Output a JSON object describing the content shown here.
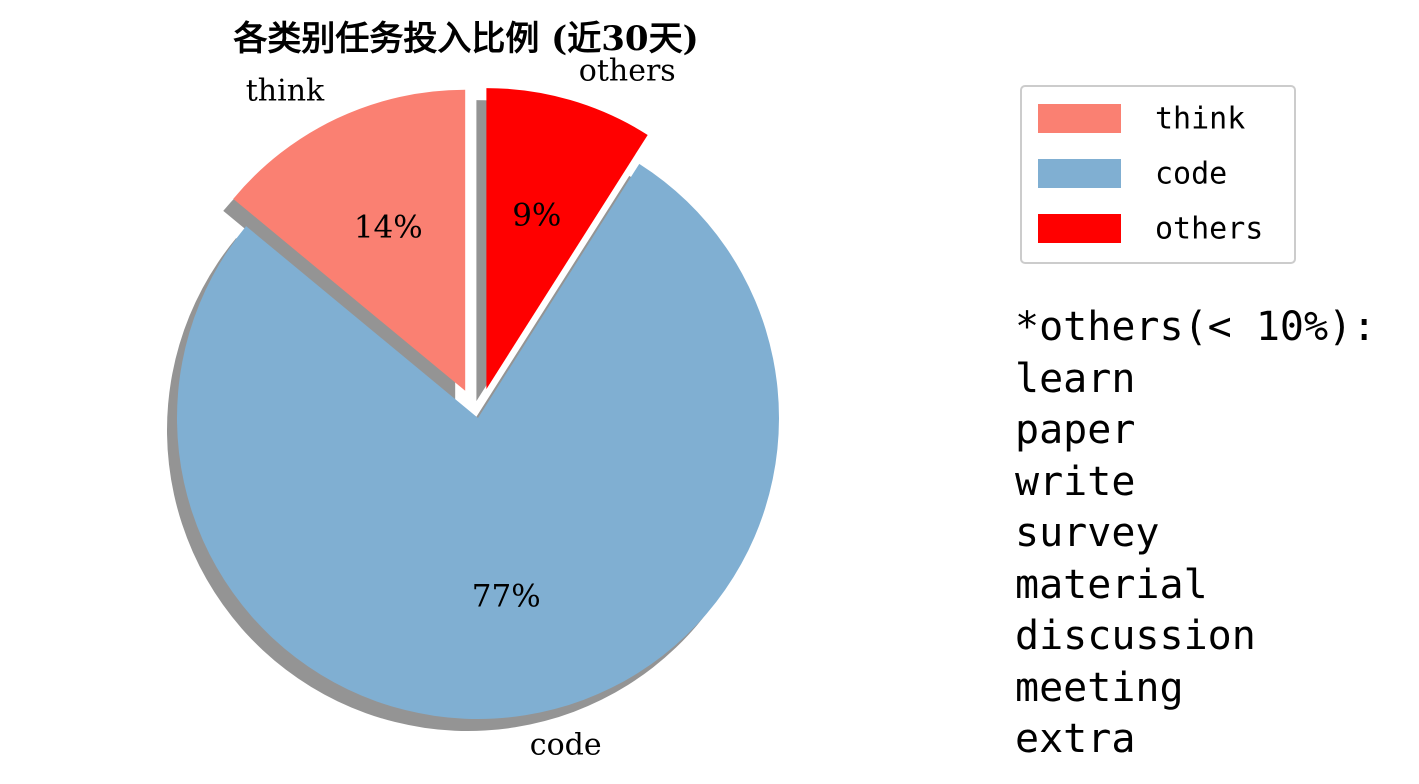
{
  "chart_data": {
    "type": "pie",
    "title": "各类别任务投入比例 (近30天)",
    "slices": [
      {
        "label": "think",
        "value": 14,
        "pct_label": "14%",
        "color": "#fa8072",
        "exploded": true
      },
      {
        "label": "code",
        "value": 77,
        "pct_label": "77%",
        "color": "#80afd2",
        "exploded": false
      },
      {
        "label": "others",
        "value": 9,
        "pct_label": "9%",
        "color": "#ff0000",
        "exploded": true
      }
    ],
    "shadow": true,
    "legend": {
      "placement": "right",
      "entries": [
        "think",
        "code",
        "others"
      ]
    }
  },
  "note": {
    "heading": "*others(< 10%):",
    "items": [
      "learn",
      "paper",
      "write",
      "survey",
      "material",
      "discussion",
      "meeting",
      "extra"
    ]
  }
}
